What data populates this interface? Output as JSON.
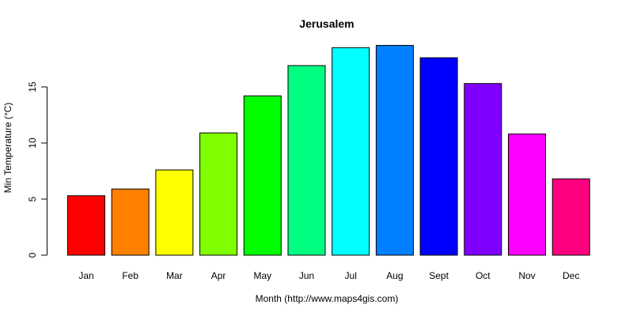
{
  "chart_data": {
    "type": "bar",
    "title": "Jerusalem",
    "xlabel": "Month (http://www.maps4gis.com)",
    "ylabel": "Min Temperature (°C)",
    "categories": [
      "Jan",
      "Feb",
      "Mar",
      "Apr",
      "May",
      "Jun",
      "Jul",
      "Aug",
      "Sept",
      "Oct",
      "Nov",
      "Dec"
    ],
    "values": [
      5.3,
      5.9,
      7.6,
      10.9,
      14.2,
      16.9,
      18.5,
      18.7,
      17.6,
      15.3,
      10.8,
      6.8
    ],
    "colors": [
      "#FF0000",
      "#FF8000",
      "#FFFF00",
      "#80FF00",
      "#00FF00",
      "#00FF80",
      "#00FFFF",
      "#0080FF",
      "#0000FF",
      "#8000FF",
      "#FF00FF",
      "#FF0080"
    ],
    "yticks": [
      0,
      5,
      10,
      15
    ],
    "ylim": [
      0,
      19
    ],
    "grid": false,
    "legend": null
  }
}
